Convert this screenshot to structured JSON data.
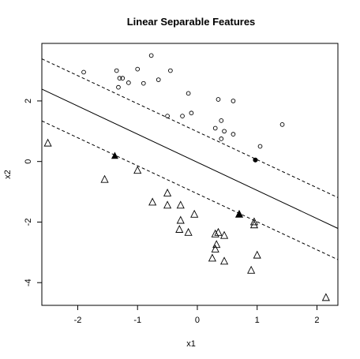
{
  "chart_data": {
    "type": "scatter",
    "title": "Linear Separable Features",
    "xlabel": "x1",
    "ylabel": "x2",
    "xlim": [
      -2.6,
      2.35
    ],
    "ylim": [
      -4.75,
      3.9
    ],
    "x_ticks": [
      -2,
      -1,
      0,
      1,
      2
    ],
    "y_ticks": [
      -4,
      -2,
      0,
      2
    ],
    "x_tick_labels": [
      "-2",
      "-1",
      "0",
      "1",
      "2"
    ],
    "y_tick_labels": [
      "-4",
      "-2",
      "0",
      "2"
    ],
    "grid": false,
    "lines": [
      {
        "name": "decision boundary",
        "style": "solid",
        "x": [
          -2.6,
          2.35
        ],
        "y": [
          2.39,
          -2.21
        ]
      },
      {
        "name": "margin upper",
        "style": "dashed",
        "x": [
          -2.6,
          2.35
        ],
        "y": [
          3.39,
          -1.19
        ]
      },
      {
        "name": "margin lower",
        "style": "dashed",
        "x": [
          -2.6,
          2.35
        ],
        "y": [
          1.34,
          -3.24
        ]
      }
    ],
    "series": [
      {
        "marker": "circle",
        "points": [
          [
            -1.9,
            2.95
          ],
          [
            -1.35,
            3.0
          ],
          [
            -1.3,
            2.75
          ],
          [
            -1.25,
            2.75
          ],
          [
            -1.32,
            2.45
          ],
          [
            -1.15,
            2.6
          ],
          [
            -1.0,
            3.05
          ],
          [
            -0.9,
            2.58
          ],
          [
            -0.77,
            3.5
          ],
          [
            -0.65,
            2.7
          ],
          [
            -0.45,
            3.0
          ],
          [
            -0.15,
            2.25
          ],
          [
            -0.5,
            1.5
          ],
          [
            -0.25,
            1.5
          ],
          [
            -0.1,
            1.6
          ],
          [
            0.35,
            2.05
          ],
          [
            0.6,
            2.0
          ],
          [
            0.4,
            1.35
          ],
          [
            0.3,
            1.1
          ],
          [
            0.45,
            1.0
          ],
          [
            0.6,
            0.9
          ],
          [
            0.4,
            0.75
          ],
          [
            1.05,
            0.5
          ],
          [
            1.42,
            1.22
          ]
        ]
      },
      {
        "marker": "triangle",
        "points": [
          [
            -2.5,
            0.6
          ],
          [
            -1.55,
            -0.6
          ],
          [
            -1.0,
            -0.3
          ],
          [
            -0.5,
            -1.05
          ],
          [
            -0.5,
            -1.45
          ],
          [
            -0.75,
            -1.35
          ],
          [
            -0.28,
            -1.45
          ],
          [
            -0.05,
            -1.75
          ],
          [
            -0.28,
            -1.95
          ],
          [
            -0.3,
            -2.25
          ],
          [
            -0.15,
            -2.35
          ],
          [
            0.3,
            -2.4
          ],
          [
            0.35,
            -2.35
          ],
          [
            0.45,
            -2.45
          ],
          [
            0.32,
            -2.75
          ],
          [
            0.3,
            -2.9
          ],
          [
            0.25,
            -3.2
          ],
          [
            0.45,
            -3.3
          ],
          [
            0.7,
            -1.75
          ],
          [
            0.95,
            -2.0
          ],
          [
            0.95,
            -2.1
          ],
          [
            1.0,
            -3.1
          ],
          [
            0.9,
            -3.6
          ],
          [
            2.15,
            -4.5
          ]
        ]
      },
      {
        "marker": "filled-circle",
        "points": [
          [
            0.97,
            0.05
          ]
        ]
      },
      {
        "marker": "filled-triangle",
        "points": [
          [
            -1.38,
            0.18
          ],
          [
            0.7,
            -1.75
          ]
        ]
      }
    ]
  }
}
